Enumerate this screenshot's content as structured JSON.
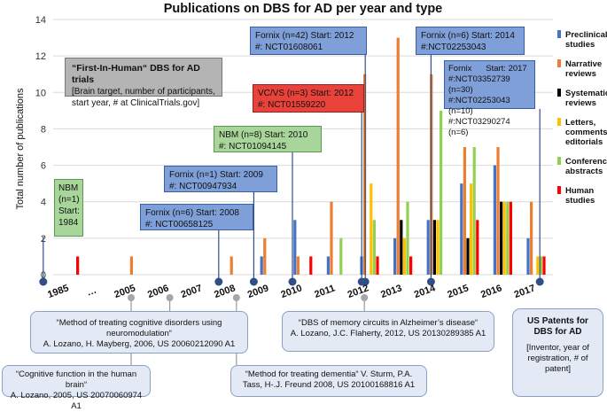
{
  "chart_data": {
    "type": "bar",
    "title": "Publications on DBS for AD per year and type",
    "ylabel": "Total number of publications",
    "ylim": [
      0,
      14
    ],
    "yticks": [
      0,
      2,
      4,
      6,
      8,
      10,
      12,
      14
    ],
    "grid": true,
    "legend_position": "right",
    "categories": [
      "1985",
      "…",
      "2005",
      "2006",
      "2007",
      "2008",
      "2009",
      "2010",
      "2011",
      "2012",
      "2013",
      "2014",
      "2015",
      "2016",
      "2017"
    ],
    "series": [
      {
        "name": "Preclinical studies",
        "color": "#4472c4",
        "values": [
          0,
          null,
          0,
          0,
          0,
          0,
          1,
          3,
          1,
          1,
          2,
          3,
          5,
          6,
          2
        ]
      },
      {
        "name": "Narrative reviews",
        "color": "#ed7d31",
        "values": [
          0,
          null,
          1,
          0,
          0,
          1,
          2,
          1,
          4,
          11,
          13,
          11,
          7,
          7,
          4
        ]
      },
      {
        "name": "Systematic reviews",
        "color": "#000000",
        "values": [
          0,
          null,
          0,
          0,
          0,
          0,
          0,
          0,
          0,
          0,
          3,
          3,
          2,
          4,
          0
        ]
      },
      {
        "name": "Letters, comments, editorials",
        "color": "#ffc000",
        "values": [
          0,
          null,
          0,
          0,
          0,
          0,
          0,
          0,
          0,
          5,
          2,
          3,
          5,
          4,
          1
        ]
      },
      {
        "name": "Conference abstracts",
        "color": "#92d050",
        "values": [
          0,
          null,
          0,
          0,
          0,
          0,
          0,
          0,
          2,
          3,
          4,
          9,
          7,
          4,
          1
        ]
      },
      {
        "name": "Human studies",
        "color": "#ff0000",
        "values": [
          1,
          null,
          0,
          0,
          0,
          0,
          0,
          1,
          0,
          1,
          1,
          0,
          3,
          4,
          1
        ]
      }
    ],
    "legend_labels": [
      [
        "Preclinical",
        "studies"
      ],
      [
        "Narrative",
        "reviews"
      ],
      [
        "Systematic",
        "reviews"
      ],
      [
        "Letters,",
        "comments,",
        "editorials"
      ],
      [
        "Conference",
        "abstracts"
      ],
      [
        "Human",
        "studies"
      ]
    ]
  },
  "trials_key": {
    "title": "“First-In-Human“ DBS for AD trials",
    "subtitle": "[Brain target, number of participants, start year, # at ClinicalTrials.gov]",
    "color": "#b4b4b4"
  },
  "trials": [
    {
      "year": "1985",
      "color": "#a8d59a",
      "lines": [
        "NBM",
        "(n=1)",
        "Start:",
        "1984"
      ]
    },
    {
      "year": "2008",
      "color": "#7f9fd8",
      "lines": [
        "Fornix (n=6) Start: 2008",
        "#: NCT00658125"
      ]
    },
    {
      "year": "2009",
      "color": "#7f9fd8",
      "lines": [
        "Fornix (n=1) Start: 2009",
        "#: NCT00947934"
      ]
    },
    {
      "year": "2010",
      "color": "#a8d59a",
      "lines": [
        "NBM (n=8) Start: 2010",
        "#: NCT01094145"
      ]
    },
    {
      "year": "2012",
      "color": "#7f9fd8",
      "lines": [
        "Fornix (n=42) Start: 2012",
        "#: NCT01608061"
      ]
    },
    {
      "year": "2012",
      "color": "#e8423a",
      "lines": [
        "VC/VS (n=3) Start: 2012",
        "#: NCT01559220"
      ]
    },
    {
      "year": "2014",
      "color": "#7f9fd8",
      "lines": [
        "Fornix (n=6) Start: 2014",
        "#:NCT02253043"
      ]
    },
    {
      "year": "2017",
      "color": "#7f9fd8",
      "lines": [
        "Fornix      Start: 2017",
        "#:NCT03352739 (n=30)",
        "#:NCT02253043 (n=10)",
        "#:NCT03290274 (n=6)"
      ]
    }
  ],
  "patents_key": {
    "title_lines": [
      "US Patents for",
      "DBS for AD"
    ],
    "subtitle": "[Inventor, year of registration, # of patent]"
  },
  "patents": [
    {
      "year": "2006",
      "title": "“Method of treating cognitive disorders using neuromodulation“",
      "authors": "A.  Lozano, H. Mayberg, 2006, US 20060212090 A1"
    },
    {
      "year": "2005",
      "title": "“Cognitive function in the human brain“",
      "authors": "A.  Lozano, 2005, US 20070060974 A1"
    },
    {
      "year": "2012",
      "title": "“DBS of memory circuits in Alzheimer’s disease“",
      "authors": "A.  Lozano, J.C. Flaherty, 2012, US 20130289385 A1"
    },
    {
      "year": "2008",
      "title": "“Method for treating dementia“ V. Sturm, P.A. Tass, H-.J. Freund 2008, US 20100168816 A1",
      "authors": ""
    }
  ]
}
